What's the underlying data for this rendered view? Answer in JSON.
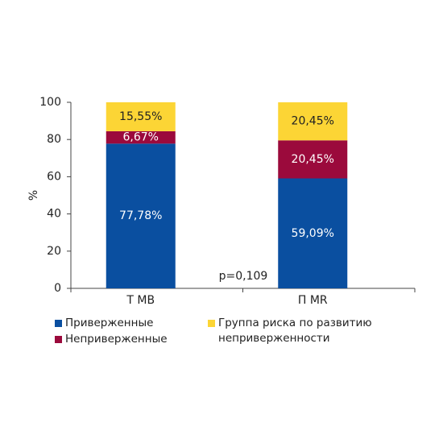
{
  "chart_data": {
    "type": "stacked_bar",
    "categories": [
      "Т МВ",
      "П MR"
    ],
    "series": [
      {
        "name": "Приверженные",
        "color": "#0a4fa0",
        "values": [
          77.78,
          59.09
        ],
        "value_labels": [
          "77,78%",
          "59,09%"
        ]
      },
      {
        "name": "Неприверженные",
        "color": "#9b0a3c",
        "values": [
          6.67,
          20.45
        ],
        "value_labels": [
          "6,67%",
          "20,45%"
        ]
      },
      {
        "name": "Группа риска по развитию неприверженности",
        "color": "#fcd535",
        "values": [
          15.55,
          20.45
        ],
        "value_labels": [
          "15,55%",
          "20,45%"
        ]
      }
    ],
    "ylabel": "%",
    "ylim": [
      0,
      100
    ],
    "yticks": [
      0,
      20,
      40,
      60,
      80,
      100
    ],
    "annotation": "p=0,109",
    "grid": false
  }
}
